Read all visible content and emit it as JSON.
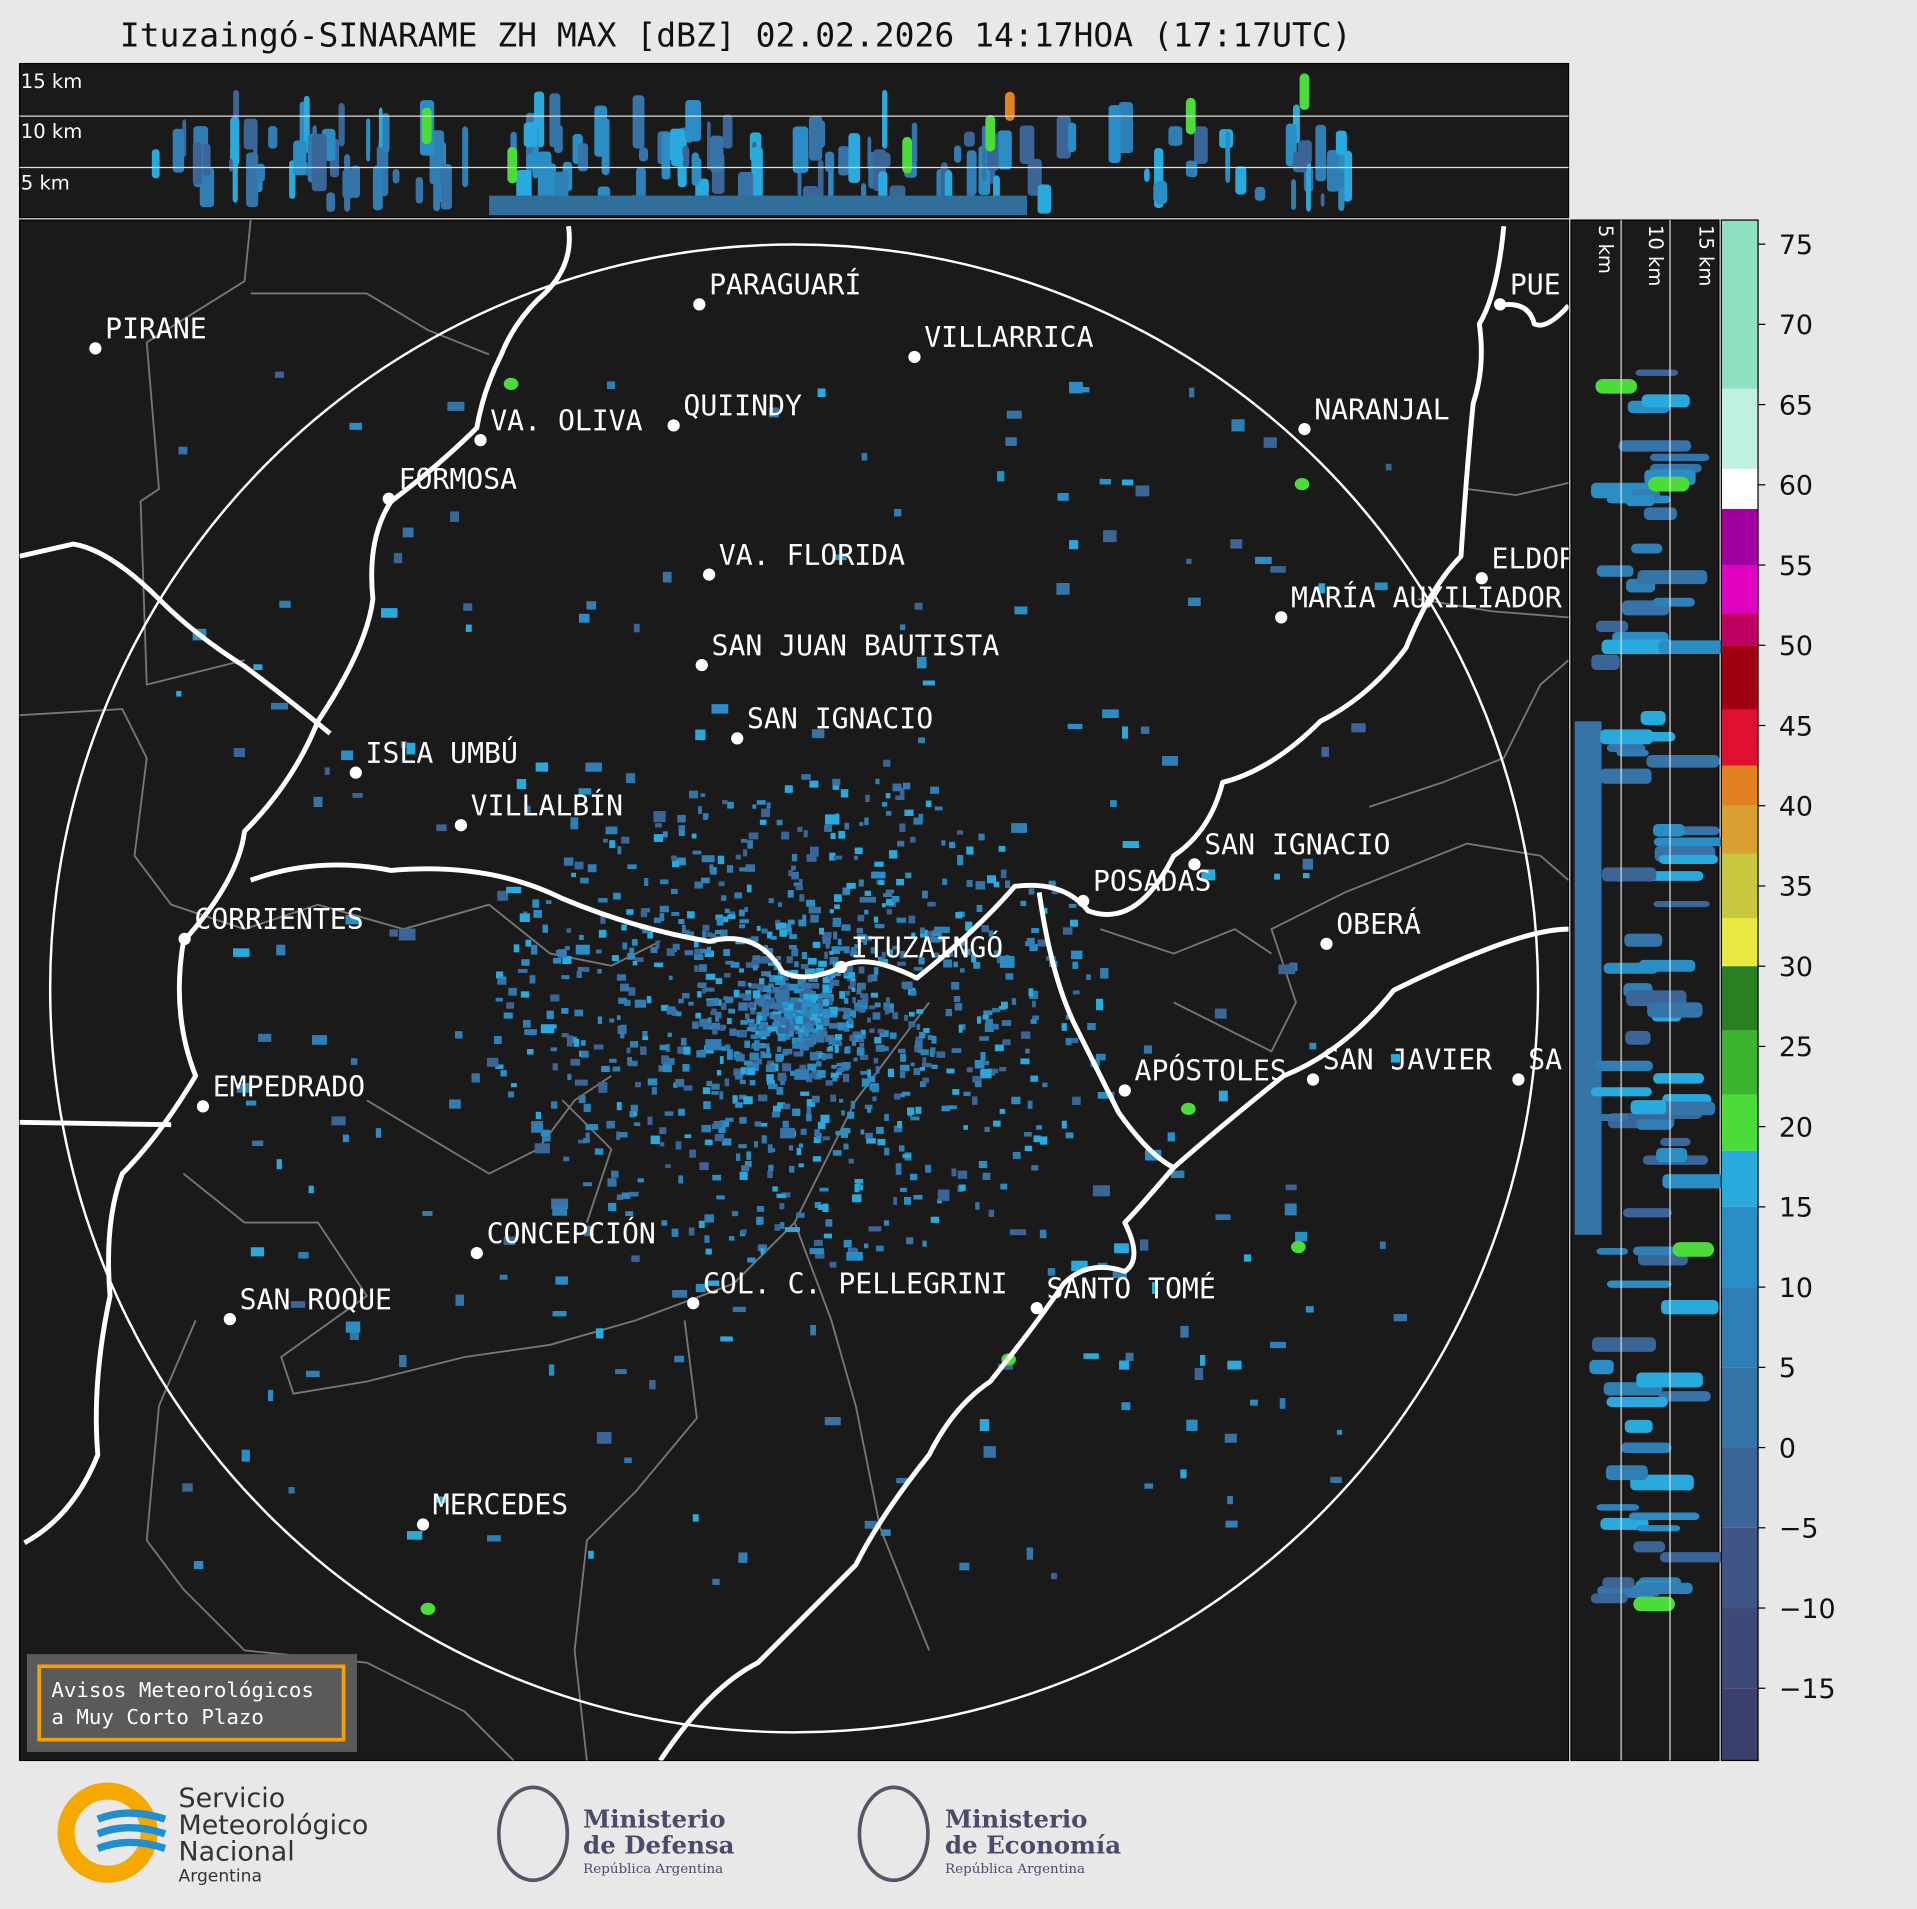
{
  "header": {
    "title": "Ituzaingó-SINARAME ZH MAX [dBZ] 02.02.2026 14:17HOA (17:17UTC)"
  },
  "top_panel": {
    "labels": [
      "15 km",
      "10 km",
      "5 km"
    ]
  },
  "side_panel": {
    "labels": [
      "5 km",
      "10 km",
      "15 km"
    ]
  },
  "cities": [
    {
      "name": "PIRANE"
    },
    {
      "name": "PARAGUARÍ"
    },
    {
      "name": "VILLARRICA"
    },
    {
      "name": "QUIINDY"
    },
    {
      "name": "VA. OLIVA"
    },
    {
      "name": "FORMOSA"
    },
    {
      "name": "NARANJAL"
    },
    {
      "name": "VA. FLORIDA"
    },
    {
      "name": "ELDOR"
    },
    {
      "name": "MARÍA AUXILIADOR"
    },
    {
      "name": "SAN JUAN BAUTISTA"
    },
    {
      "name": "SAN IGNACIO"
    },
    {
      "name": "ISLA UMBÚ"
    },
    {
      "name": "VILLALBÍN"
    },
    {
      "name": "SAN IGNACIO"
    },
    {
      "name": "POSADAS"
    },
    {
      "name": "CORRIENTES"
    },
    {
      "name": "ITUZAINGÓ"
    },
    {
      "name": "OBERÁ"
    },
    {
      "name": "EMPEDRADO"
    },
    {
      "name": "APÓSTOLES"
    },
    {
      "name": "SAN JAVIER"
    },
    {
      "name": "SA"
    },
    {
      "name": "CONCEPCIÓN"
    },
    {
      "name": "COL. C. PELLEGRINI"
    },
    {
      "name": "SANTO TOMÉ"
    },
    {
      "name": "SAN ROQUE"
    },
    {
      "name": "MERCEDES"
    },
    {
      "name": "PUE"
    }
  ],
  "colorbar": {
    "lim": [
      -19.5,
      76.5
    ],
    "ticks": [
      {
        "value": -15,
        "label": "−15"
      },
      {
        "value": -10,
        "label": "−10"
      },
      {
        "value": -5,
        "label": "−5"
      },
      0,
      5,
      10,
      15,
      20,
      25,
      30,
      35,
      40,
      45,
      50,
      55,
      60,
      65,
      70,
      75
    ],
    "segments": [
      {
        "from": -19.5,
        "to": -15,
        "color": "#3a3f6b"
      },
      {
        "from": -15,
        "to": -10,
        "color": "#3d4a78"
      },
      {
        "from": -10,
        "to": -5,
        "color": "#3f5585"
      },
      {
        "from": -5,
        "to": 0,
        "color": "#3a6596"
      },
      {
        "from": 0,
        "to": 5,
        "color": "#3674a8"
      },
      {
        "from": 5,
        "to": 10,
        "color": "#2f7fb5"
      },
      {
        "from": 10,
        "to": 15,
        "color": "#2a8ec4"
      },
      {
        "from": 15,
        "to": 18.5,
        "color": "#29a9dc"
      },
      {
        "from": 18.5,
        "to": 22,
        "color": "#4cdc3a"
      },
      {
        "from": 22,
        "to": 26,
        "color": "#3cb52e"
      },
      {
        "from": 26,
        "to": 30,
        "color": "#2a7f22"
      },
      {
        "from": 30,
        "to": 33,
        "color": "#e8e840"
      },
      {
        "from": 33,
        "to": 37,
        "color": "#c8c840"
      },
      {
        "from": 37,
        "to": 40,
        "color": "#d8a030"
      },
      {
        "from": 40,
        "to": 42.5,
        "color": "#e08020"
      },
      {
        "from": 42.5,
        "to": 46,
        "color": "#e01030"
      },
      {
        "from": 46,
        "to": 50,
        "color": "#a00010"
      },
      {
        "from": 50,
        "to": 52,
        "color": "#c00060"
      },
      {
        "from": 52,
        "to": 55,
        "color": "#e000c0"
      },
      {
        "from": 55,
        "to": 58.5,
        "color": "#a000a0"
      },
      {
        "from": 58.5,
        "to": 61,
        "color": "#ffffff"
      },
      {
        "from": 61,
        "to": 66,
        "color": "#c0f0e0"
      },
      {
        "from": 66,
        "to": 76.5,
        "color": "#8ee0c0"
      }
    ]
  },
  "warning": {
    "lines": [
      "Avisos Meteorológicos",
      "a Muy Corto Plazo"
    ]
  },
  "logos": {
    "smn": [
      "Servicio",
      "Meteorológico",
      "Nacional",
      "Argentina"
    ],
    "defensa": [
      "Ministerio",
      "de Defensa",
      "República Argentina"
    ],
    "economia": [
      "Ministerio",
      "de Economía",
      "República Argentina"
    ]
  }
}
